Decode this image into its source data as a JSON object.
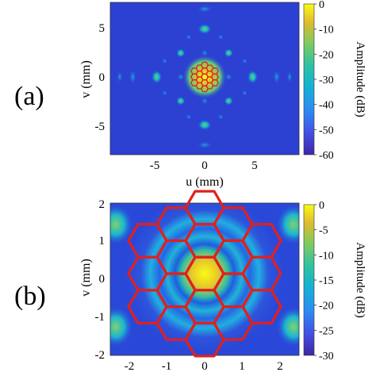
{
  "chart_data": [
    {
      "type": "heatmap",
      "panel_label": "(a)",
      "xlabel": "u (mm)",
      "ylabel": "v (mm)",
      "xlim": [
        -9.5,
        9.5
      ],
      "ylim": [
        -7.5,
        7.5
      ],
      "xticks": [
        -5,
        0,
        5
      ],
      "yticks": [
        5,
        0,
        -5
      ],
      "colorbar": {
        "label": "Amplitude (dB)",
        "ticks": [
          0,
          -10,
          -20,
          -30,
          -40,
          -50,
          -60
        ],
        "range": [
          -60,
          0
        ],
        "colormap": "parula"
      },
      "overlay": {
        "type": "hexagon-grid",
        "color": "#e0201e",
        "cells": 19,
        "center": [
          0,
          0
        ],
        "approx_radius_mm": 1.55
      }
    },
    {
      "type": "heatmap",
      "panel_label": "(b)",
      "xlabel": "",
      "ylabel": "v (mm)",
      "xlim": [
        -2.5,
        2.5
      ],
      "ylim": [
        -2,
        2
      ],
      "xticks": [
        -2,
        -1,
        0,
        1,
        2
      ],
      "yticks": [
        2,
        1,
        0,
        -1,
        -2
      ],
      "colorbar": {
        "label": "Amplitude (dB)",
        "ticks": [
          0,
          -5,
          -10,
          -15,
          -20,
          -25,
          -30
        ],
        "range": [
          -30,
          0
        ],
        "colormap": "parula"
      },
      "overlay": {
        "type": "hexagon-grid",
        "color": "#e0201e",
        "cells": 19,
        "center": [
          0,
          0
        ],
        "approx_radius_mm": 1.55
      }
    }
  ]
}
